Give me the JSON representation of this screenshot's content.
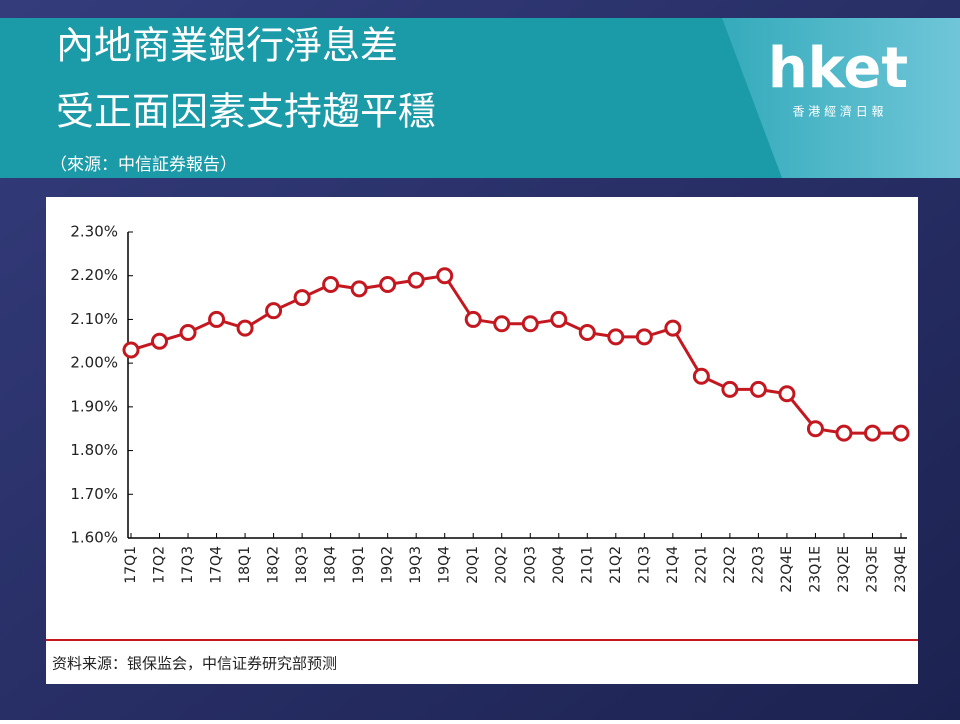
{
  "header": {
    "title": [
      "內地商業銀行淨息差",
      "受正面因素支持趨平穩"
    ],
    "subtitle": "（來源：中信証券報告）",
    "logo": "hket",
    "logo_sub": "香 港 經 濟 日 報"
  },
  "chart_data": {
    "type": "line",
    "categories": [
      "17Q1",
      "17Q2",
      "17Q3",
      "17Q4",
      "18Q1",
      "18Q2",
      "18Q3",
      "18Q4",
      "19Q1",
      "19Q2",
      "19Q3",
      "19Q4",
      "20Q1",
      "20Q2",
      "20Q3",
      "20Q4",
      "21Q1",
      "21Q2",
      "21Q3",
      "21Q4",
      "22Q1",
      "22Q2",
      "22Q3",
      "22Q4E",
      "23Q1E",
      "23Q2E",
      "23Q3E",
      "23Q4E"
    ],
    "values": [
      2.03,
      2.05,
      2.07,
      2.1,
      2.08,
      2.12,
      2.15,
      2.18,
      2.17,
      2.18,
      2.19,
      2.2,
      2.1,
      2.09,
      2.09,
      2.1,
      2.07,
      2.06,
      2.06,
      2.08,
      1.97,
      1.94,
      1.94,
      1.93,
      1.85,
      1.84,
      1.84,
      1.84
    ],
    "color": "#c41820",
    "ylim": [
      1.6,
      2.3
    ],
    "yticks": [
      {
        "value": 1.6,
        "label": "1.60%"
      },
      {
        "value": 1.7,
        "label": "1.70%"
      },
      {
        "value": 1.8,
        "label": "1.80%"
      },
      {
        "value": 1.9,
        "label": "1.90%"
      },
      {
        "value": 2.0,
        "label": "2.00%"
      },
      {
        "value": 2.1,
        "label": "2.10%"
      },
      {
        "value": 2.2,
        "label": "2.20%"
      },
      {
        "value": 2.3,
        "label": "2.30%"
      }
    ],
    "source": "资料来源：银保监会，中信证券研究部预测"
  }
}
